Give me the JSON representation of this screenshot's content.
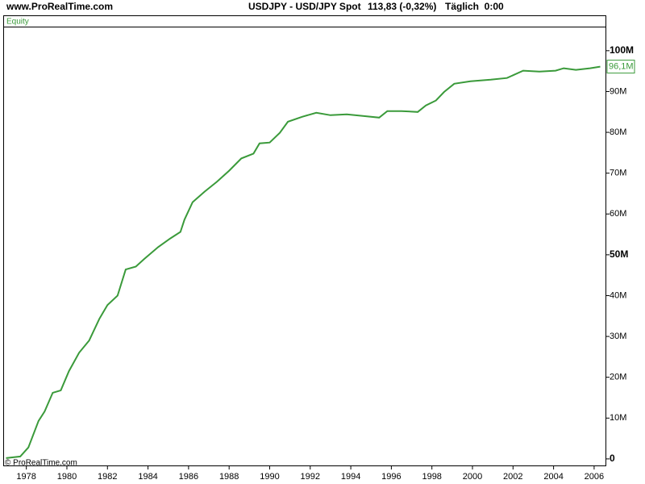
{
  "header": {
    "site": "www.ProRealTime.com",
    "instrument": "USDJPY - USD/JPY Spot",
    "quote": "113,83 (-0,32%)",
    "period": "Täglich  0:00"
  },
  "chart_data": {
    "type": "line",
    "title": "Equity",
    "footer": "© ProRealTime.com",
    "x": [
      1977.0,
      1977.7,
      1978.1,
      1978.6,
      1978.9,
      1979.3,
      1979.7,
      1980.1,
      1980.6,
      1981.1,
      1981.6,
      1982.0,
      1982.5,
      1982.9,
      1983.4,
      1983.8,
      1984.5,
      1985.1,
      1985.6,
      1985.8,
      1986.2,
      1986.8,
      1987.4,
      1988.0,
      1988.6,
      1989.2,
      1989.5,
      1990.0,
      1990.5,
      1990.9,
      1991.6,
      1992.3,
      1993.0,
      1993.8,
      1994.6,
      1995.4,
      1995.8,
      1996.5,
      1997.3,
      1997.7,
      1998.2,
      1998.6,
      1999.1,
      1999.9,
      2000.9,
      2001.7,
      2002.5,
      2003.3,
      2004.1,
      2004.5,
      2005.1,
      2005.8,
      2006.3
    ],
    "values": [
      0.2,
      0.6,
      2.8,
      9.3,
      11.6,
      16.2,
      16.8,
      21.5,
      26.0,
      29.0,
      34.3,
      37.7,
      40.0,
      46.4,
      47.1,
      48.9,
      51.9,
      54.0,
      55.6,
      58.6,
      62.9,
      65.5,
      67.9,
      70.6,
      73.6,
      74.8,
      77.3,
      77.5,
      79.9,
      82.6,
      83.8,
      84.8,
      84.2,
      84.4,
      84.0,
      83.6,
      85.2,
      85.2,
      85.0,
      86.6,
      87.8,
      89.9,
      91.9,
      92.5,
      92.9,
      93.3,
      95.1,
      94.9,
      95.1,
      95.7,
      95.3,
      95.7,
      96.1
    ],
    "color": "#3a9a3a",
    "last_value": 96.1,
    "last_value_label": "96,1M",
    "xlim": [
      1976.9,
      2006.6
    ],
    "xticks": [
      1978,
      1980,
      1982,
      1984,
      1986,
      1988,
      1990,
      1992,
      1994,
      1996,
      1998,
      2000,
      2002,
      2004,
      2006
    ],
    "ylim": [
      -1.8,
      105.7
    ],
    "yticks": [
      0,
      {
        "value": 10,
        "label": "10M"
      },
      {
        "value": 20,
        "label": "20M"
      },
      {
        "value": 30,
        "label": "30M"
      },
      {
        "value": 40,
        "label": "40M"
      },
      {
        "value": 50,
        "label": "50M"
      },
      {
        "value": 60,
        "label": "60M"
      },
      {
        "value": 70,
        "label": "70M"
      },
      {
        "value": 80,
        "label": "80M"
      },
      {
        "value": 90,
        "label": "90M"
      },
      {
        "value": 100,
        "label": "100M"
      }
    ]
  }
}
